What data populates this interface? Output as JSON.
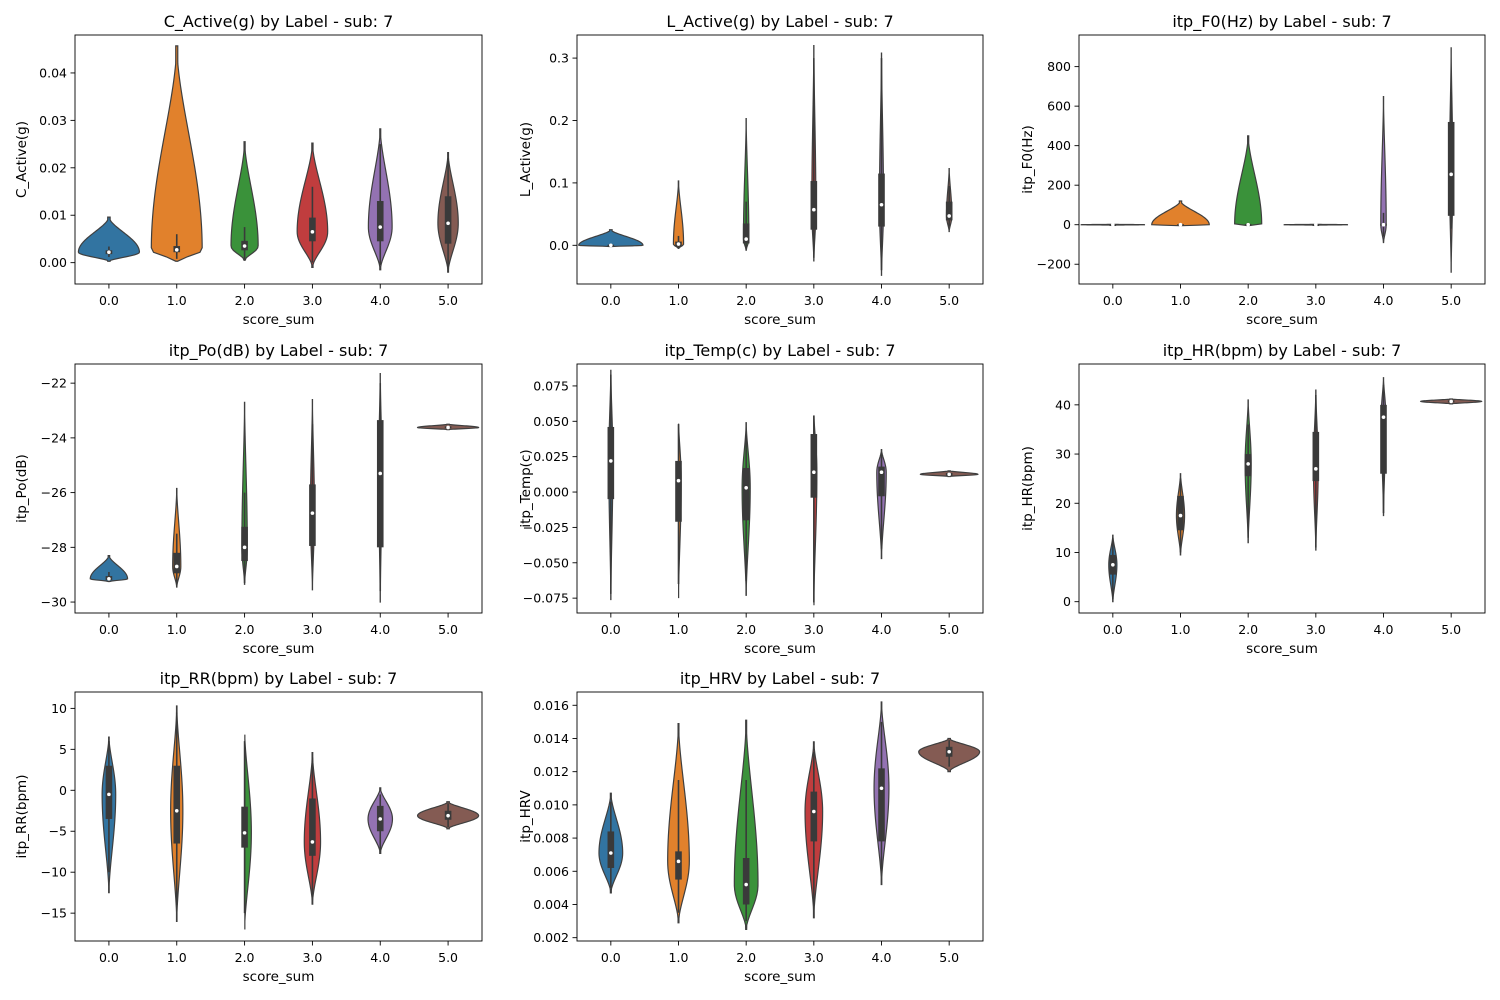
{
  "colors": {
    "0.0": "#3274a1",
    "1.0": "#e1812c",
    "2.0": "#3a923a",
    "3.0": "#c03d3e",
    "4.0": "#9372b2",
    "5.0": "#845b53",
    "inner": "#3a3a3a",
    "median": "#ffffff"
  },
  "chart_data": [
    {
      "type": "violin",
      "title": "C_Active(g) by Label - sub: 7",
      "xlabel": "score_sum",
      "ylabel": "C_Active(g)",
      "categories": [
        "0.0",
        "1.0",
        "2.0",
        "3.0",
        "4.0",
        "5.0"
      ],
      "ylim": [
        -0.0045,
        0.048
      ],
      "yticks": [
        0.0,
        0.01,
        0.02,
        0.03,
        0.04
      ],
      "ytick_labels": [
        "0.00",
        "0.01",
        "0.02",
        "0.03",
        "0.04"
      ],
      "violins": [
        {
          "min": 0.0003,
          "max": 0.0096,
          "q1": 0.0018,
          "median": 0.0022,
          "q3": 0.0026,
          "wlo": 0.0012,
          "whi": 0.0034,
          "width": 0.9
        },
        {
          "min": 0.0003,
          "max": 0.0457,
          "q1": 0.0022,
          "median": 0.0027,
          "q3": 0.0035,
          "wlo": 0.0008,
          "whi": 0.006,
          "width": 0.75
        },
        {
          "min": 0.0005,
          "max": 0.0255,
          "q1": 0.0026,
          "median": 0.0035,
          "q3": 0.0046,
          "wlo": 0.0006,
          "whi": 0.0075,
          "width": 0.4
        },
        {
          "min": -0.001,
          "max": 0.0252,
          "q1": 0.0045,
          "median": 0.0065,
          "q3": 0.0095,
          "wlo": 0.0,
          "whi": 0.016,
          "width": 0.45
        },
        {
          "min": -0.0015,
          "max": 0.0282,
          "q1": 0.0045,
          "median": 0.0075,
          "q3": 0.013,
          "wlo": -0.0005,
          "whi": 0.025,
          "width": 0.35
        },
        {
          "min": -0.002,
          "max": 0.0232,
          "q1": 0.004,
          "median": 0.0083,
          "q3": 0.014,
          "wlo": -0.001,
          "whi": 0.022,
          "width": 0.3
        }
      ]
    },
    {
      "type": "violin",
      "title": "L_Active(g) by Label - sub: 7",
      "xlabel": "score_sum",
      "ylabel": "L_Active(g)",
      "categories": [
        "0.0",
        "1.0",
        "2.0",
        "3.0",
        "4.0",
        "5.0"
      ],
      "ylim": [
        -0.062,
        0.337
      ],
      "yticks": [
        0.0,
        0.1,
        0.2,
        0.3
      ],
      "ytick_labels": [
        "0.0",
        "0.1",
        "0.2",
        "0.3"
      ],
      "violins": [
        {
          "min": -0.002,
          "max": 0.025,
          "q1": -0.001,
          "median": 0.0,
          "q3": 0.001,
          "wlo": -0.002,
          "whi": 0.003,
          "width": 0.95
        },
        {
          "min": -0.005,
          "max": 0.103,
          "q1": -0.002,
          "median": 0.002,
          "q3": 0.006,
          "wlo": -0.004,
          "whi": 0.015,
          "width": 0.15
        },
        {
          "min": -0.008,
          "max": 0.203,
          "q1": 0.003,
          "median": 0.01,
          "q3": 0.035,
          "wlo": -0.005,
          "whi": 0.07,
          "width": 0.08
        },
        {
          "min": -0.025,
          "max": 0.32,
          "q1": 0.025,
          "median": 0.057,
          "q3": 0.103,
          "wlo": -0.02,
          "whi": 0.3,
          "width": 0.06
        },
        {
          "min": -0.048,
          "max": 0.308,
          "q1": 0.03,
          "median": 0.065,
          "q3": 0.115,
          "wlo": -0.04,
          "whi": 0.3,
          "width": 0.06
        },
        {
          "min": 0.022,
          "max": 0.123,
          "q1": 0.04,
          "median": 0.047,
          "q3": 0.07,
          "wlo": 0.03,
          "whi": 0.095,
          "width": 0.08
        }
      ]
    },
    {
      "type": "violin",
      "title": "itp_F0(Hz) by Label - sub: 7",
      "xlabel": "score_sum",
      "ylabel": "itp_F0(Hz)",
      "categories": [
        "0.0",
        "1.0",
        "2.0",
        "3.0",
        "4.0",
        "5.0"
      ],
      "ylim": [
        -300,
        960
      ],
      "yticks": [
        -200,
        0,
        200,
        400,
        600,
        800
      ],
      "ytick_labels": [
        "−200",
        "0",
        "200",
        "400",
        "600",
        "800"
      ],
      "violins": [
        {
          "min": -2,
          "max": 2,
          "q1": -1,
          "median": 0,
          "q3": 1,
          "wlo": -1,
          "whi": 1,
          "width": 0.95
        },
        {
          "min": -5,
          "max": 120,
          "q1": -2,
          "median": 0,
          "q3": 3,
          "wlo": -5,
          "whi": 8,
          "width": 0.85
        },
        {
          "min": -5,
          "max": 450,
          "q1": -3,
          "median": 0,
          "q3": 4,
          "wlo": -5,
          "whi": 10,
          "width": 0.4
        },
        {
          "min": -2,
          "max": 2,
          "q1": -1,
          "median": 0,
          "q3": 1,
          "wlo": -1,
          "whi": 1,
          "width": 0.95
        },
        {
          "min": -90,
          "max": 648,
          "q1": -5,
          "median": 0,
          "q3": 5,
          "wlo": -60,
          "whi": 60,
          "width": 0.08
        },
        {
          "min": -240,
          "max": 895,
          "q1": 45,
          "median": 255,
          "q3": 520,
          "wlo": -20,
          "whi": 670,
          "width": 0.05
        }
      ]
    },
    {
      "type": "violin",
      "title": "itp_Po(dB) by Label - sub: 7",
      "xlabel": "score_sum",
      "ylabel": "itp_Po(dB)",
      "categories": [
        "0.0",
        "1.0",
        "2.0",
        "3.0",
        "4.0",
        "5.0"
      ],
      "ylim": [
        -30.4,
        -21.3
      ],
      "yticks": [
        -30,
        -28,
        -26,
        -24,
        -22
      ],
      "ytick_labels": [
        "−30",
        "−28",
        "−26",
        "−24",
        "−22"
      ],
      "violins": [
        {
          "min": -29.25,
          "max": -28.3,
          "q1": -29.2,
          "median": -29.15,
          "q3": -29.05,
          "wlo": -29.25,
          "whi": -28.9,
          "width": 0.55
        },
        {
          "min": -29.45,
          "max": -25.85,
          "q1": -28.95,
          "median": -28.7,
          "q3": -28.2,
          "wlo": -29.4,
          "whi": -27.5,
          "width": 0.12
        },
        {
          "min": -29.35,
          "max": -22.7,
          "q1": -28.5,
          "median": -28.0,
          "q3": -27.25,
          "wlo": -29.3,
          "whi": -26.0,
          "width": 0.08
        },
        {
          "min": -29.55,
          "max": -22.6,
          "q1": -27.95,
          "median": -26.75,
          "q3": -25.7,
          "wlo": -28.7,
          "whi": -23.5,
          "width": 0.06
        },
        {
          "min": -30.0,
          "max": -21.65,
          "q1": -28.0,
          "median": -25.3,
          "q3": -23.35,
          "wlo": -29.6,
          "whi": -22.0,
          "width": 0.05
        },
        {
          "min": -23.7,
          "max": -23.5,
          "q1": -23.65,
          "median": -23.62,
          "q3": -23.58,
          "wlo": -23.68,
          "whi": -23.55,
          "width": 0.9
        }
      ]
    },
    {
      "type": "violin",
      "title": "itp_Temp(c) by Label - sub: 7",
      "xlabel": "score_sum",
      "ylabel": "itp_Temp(c)",
      "categories": [
        "0.0",
        "1.0",
        "2.0",
        "3.0",
        "4.0",
        "5.0"
      ],
      "ylim": [
        -0.0855,
        0.0905
      ],
      "yticks": [
        -0.075,
        -0.05,
        -0.025,
        0.0,
        0.025,
        0.05,
        0.075
      ],
      "ytick_labels": [
        "−0.075",
        "−0.050",
        "−0.025",
        "0.000",
        "0.025",
        "0.050",
        "0.075"
      ],
      "violins": [
        {
          "min": -0.076,
          "max": 0.086,
          "q1": -0.005,
          "median": 0.022,
          "q3": 0.046,
          "wlo": -0.072,
          "whi": 0.083,
          "width": 0.06
        },
        {
          "min": -0.075,
          "max": 0.051,
          "q1": -0.021,
          "median": 0.008,
          "q3": 0.022,
          "wlo": -0.065,
          "whi": 0.048,
          "width": 0.08
        },
        {
          "min": -0.073,
          "max": 0.049,
          "q1": -0.02,
          "median": 0.003,
          "q3": 0.017,
          "wlo": -0.063,
          "whi": 0.04,
          "width": 0.12
        },
        {
          "min": -0.08,
          "max": 0.057,
          "q1": -0.004,
          "median": 0.014,
          "q3": 0.041,
          "wlo": -0.078,
          "whi": 0.054,
          "width": 0.09
        },
        {
          "min": -0.047,
          "max": 0.03,
          "q1": -0.003,
          "median": 0.014,
          "q3": 0.018,
          "wlo": -0.04,
          "whi": 0.028,
          "width": 0.14
        },
        {
          "min": 0.011,
          "max": 0.015,
          "q1": 0.0115,
          "median": 0.0125,
          "q3": 0.0135,
          "wlo": 0.011,
          "whi": 0.0145,
          "width": 0.85
        }
      ]
    },
    {
      "type": "violin",
      "title": "itp_HR(bpm) by Label - sub: 7",
      "xlabel": "score_sum",
      "ylabel": "itp_HR(bpm)",
      "categories": [
        "0.0",
        "1.0",
        "2.0",
        "3.0",
        "4.0",
        "5.0"
      ],
      "ylim": [
        -2.3,
        48.3
      ],
      "yticks": [
        0,
        10,
        20,
        30,
        40
      ],
      "ytick_labels": [
        "0",
        "10",
        "20",
        "30",
        "40"
      ],
      "violins": [
        {
          "min": 0,
          "max": 13.5,
          "q1": 5.5,
          "median": 7.5,
          "q3": 9.5,
          "wlo": 0.5,
          "whi": 13,
          "width": 0.12
        },
        {
          "min": 9.5,
          "max": 26,
          "q1": 14.5,
          "median": 17.5,
          "q3": 21.5,
          "wlo": 10,
          "whi": 25,
          "width": 0.12
        },
        {
          "min": 12,
          "max": 41,
          "q1": 25.5,
          "median": 28,
          "q3": 30,
          "wlo": 13,
          "whi": 36,
          "width": 0.09
        },
        {
          "min": 10.5,
          "max": 43,
          "q1": 24.5,
          "median": 27,
          "q3": 34.5,
          "wlo": 11,
          "whi": 42,
          "width": 0.07
        },
        {
          "min": 17.5,
          "max": 45.5,
          "q1": 26,
          "median": 37.5,
          "q3": 40,
          "wlo": 18,
          "whi": 44,
          "width": 0.07
        },
        {
          "min": 40.2,
          "max": 41.2,
          "q1": 40.5,
          "median": 40.7,
          "q3": 40.9,
          "wlo": 40.3,
          "whi": 41.1,
          "width": 0.9
        }
      ]
    },
    {
      "type": "violin",
      "title": "itp_RR(bpm) by Label - sub: 7",
      "xlabel": "score_sum",
      "ylabel": "itp_RR(bpm)",
      "categories": [
        "0.0",
        "1.0",
        "2.0",
        "3.0",
        "4.0",
        "5.0"
      ],
      "ylim": [
        -18.4,
        12.0
      ],
      "yticks": [
        -15,
        -10,
        -5,
        0,
        5,
        10
      ],
      "ytick_labels": [
        "−15",
        "−10",
        "−5",
        "0",
        "5",
        "10"
      ],
      "violins": [
        {
          "min": -12.5,
          "max": 6.5,
          "q1": -3.5,
          "median": -0.5,
          "q3": 3,
          "wlo": -10,
          "whi": 6,
          "width": 0.2
        },
        {
          "min": -16,
          "max": 10.3,
          "q1": -6.5,
          "median": -2.5,
          "q3": 3,
          "wlo": -14,
          "whi": 9.5,
          "width": 0.18
        },
        {
          "min": -17,
          "max": 7.3,
          "q1": -7,
          "median": -5.2,
          "q3": -2,
          "wlo": -15,
          "whi": 6,
          "width": 0.2
        },
        {
          "min": -13.9,
          "max": 4.6,
          "q1": -8,
          "median": -6.3,
          "q3": -1,
          "wlo": -13,
          "whi": 4,
          "width": 0.24
        },
        {
          "min": -7.7,
          "max": 0.3,
          "q1": -5,
          "median": -3.5,
          "q3": -1.9,
          "wlo": -7.5,
          "whi": -0.5,
          "width": 0.36
        },
        {
          "min": -4.7,
          "max": -1.4,
          "q1": -3.6,
          "median": -3.1,
          "q3": -2.5,
          "wlo": -4.5,
          "whi": -1.6,
          "width": 0.9
        }
      ]
    },
    {
      "type": "violin",
      "title": "itp_HRV by Label - sub: 7",
      "xlabel": "score_sum",
      "ylabel": "itp_HRV",
      "categories": [
        "0.0",
        "1.0",
        "2.0",
        "3.0",
        "4.0",
        "5.0"
      ],
      "ylim": [
        0.0018,
        0.0168
      ],
      "yticks": [
        0.002,
        0.004,
        0.006,
        0.008,
        0.01,
        0.012,
        0.014,
        0.016
      ],
      "ytick_labels": [
        "0.002",
        "0.004",
        "0.006",
        "0.008",
        "0.010",
        "0.012",
        "0.014",
        "0.016"
      ],
      "violins": [
        {
          "min": 0.0047,
          "max": 0.0107,
          "q1": 0.0062,
          "median": 0.0071,
          "q3": 0.0084,
          "wlo": 0.005,
          "whi": 0.0102,
          "width": 0.35
        },
        {
          "min": 0.0029,
          "max": 0.0149,
          "q1": 0.0055,
          "median": 0.0066,
          "q3": 0.0072,
          "wlo": 0.0035,
          "whi": 0.0115,
          "width": 0.32
        },
        {
          "min": 0.0025,
          "max": 0.0151,
          "q1": 0.004,
          "median": 0.0052,
          "q3": 0.0068,
          "wlo": 0.003,
          "whi": 0.0115,
          "width": 0.35
        },
        {
          "min": 0.0032,
          "max": 0.0138,
          "q1": 0.0078,
          "median": 0.0096,
          "q3": 0.0108,
          "wlo": 0.004,
          "whi": 0.0132,
          "width": 0.26
        },
        {
          "min": 0.0052,
          "max": 0.0162,
          "q1": 0.0078,
          "median": 0.011,
          "q3": 0.0122,
          "wlo": 0.006,
          "whi": 0.015,
          "width": 0.22
        },
        {
          "min": 0.012,
          "max": 0.014,
          "q1": 0.0129,
          "median": 0.0132,
          "q3": 0.0135,
          "wlo": 0.0123,
          "whi": 0.0139,
          "width": 0.9
        }
      ]
    }
  ]
}
